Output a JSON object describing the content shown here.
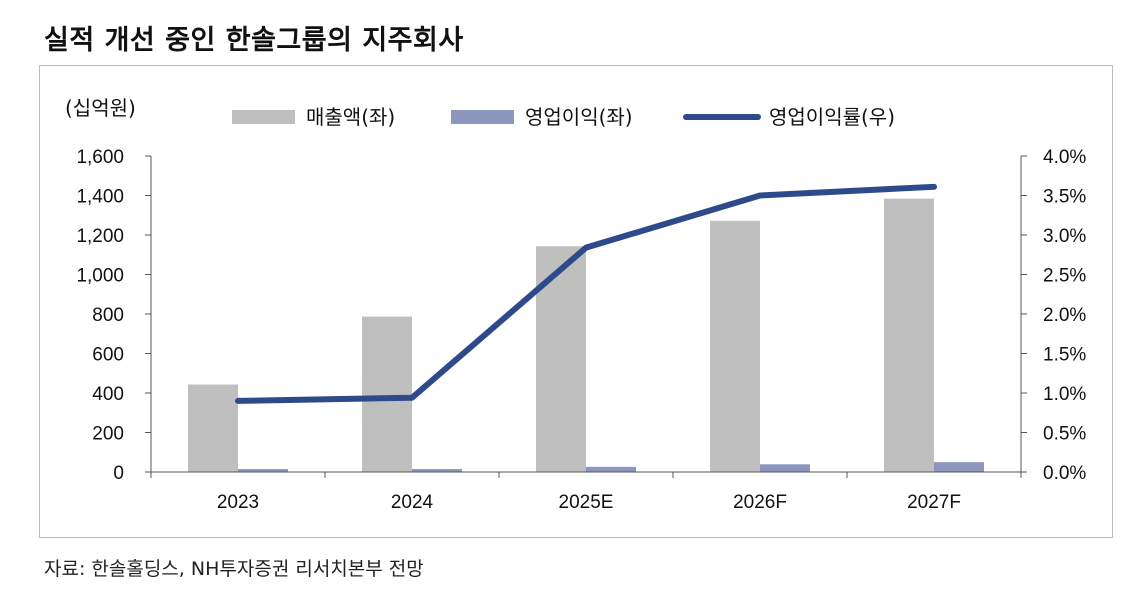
{
  "title": "실적 개선 중인 한솔그룹의 지주회사",
  "source": "자료: 한솔홀딩스, NH투자증권 리서치본부 전망",
  "chart_data": {
    "type": "bar",
    "unit_label": "(십억원)",
    "categories": [
      "2023",
      "2024",
      "2025E",
      "2026F",
      "2027F"
    ],
    "series": [
      {
        "name": "매출액(좌)",
        "type": "bar",
        "axis": "left",
        "color": "#bfbfbf",
        "values": [
          443,
          787,
          1143,
          1272,
          1384
        ]
      },
      {
        "name": "영업이익(좌)",
        "type": "bar",
        "axis": "left",
        "color": "#8d96bf",
        "values": [
          15,
          15,
          26,
          39,
          50
        ]
      },
      {
        "name": "영업이익률(우)",
        "type": "line",
        "axis": "right",
        "color": "#2e4a8a",
        "values": [
          0.9,
          0.94,
          2.84,
          3.5,
          3.61
        ]
      }
    ],
    "y_left": {
      "min": 0,
      "max": 1600,
      "ticks": [
        "0",
        "200",
        "400",
        "600",
        "800",
        "1,000",
        "1,200",
        "1,400",
        "1,600"
      ]
    },
    "y_right": {
      "min": 0,
      "max": 4,
      "ticks": [
        "0.0%",
        "0.5%",
        "1.0%",
        "1.5%",
        "2.0%",
        "2.5%",
        "3.0%",
        "3.5%",
        "4.0%"
      ]
    },
    "legend_position": "top",
    "grid": false
  }
}
